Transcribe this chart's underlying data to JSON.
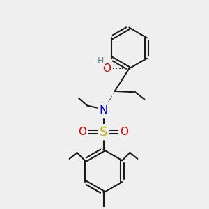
{
  "bg_color": "#efefef",
  "bond_color": "#1a1a1a",
  "bond_width": 1.5,
  "atom_colors": {
    "O": "#dd0000",
    "N": "#0000cc",
    "S": "#bbbb00",
    "H": "#5a8a8a",
    "C": "#1a1a1a"
  },
  "font_size_atom": 10,
  "font_size_small": 8.5,
  "font_size_H": 9
}
